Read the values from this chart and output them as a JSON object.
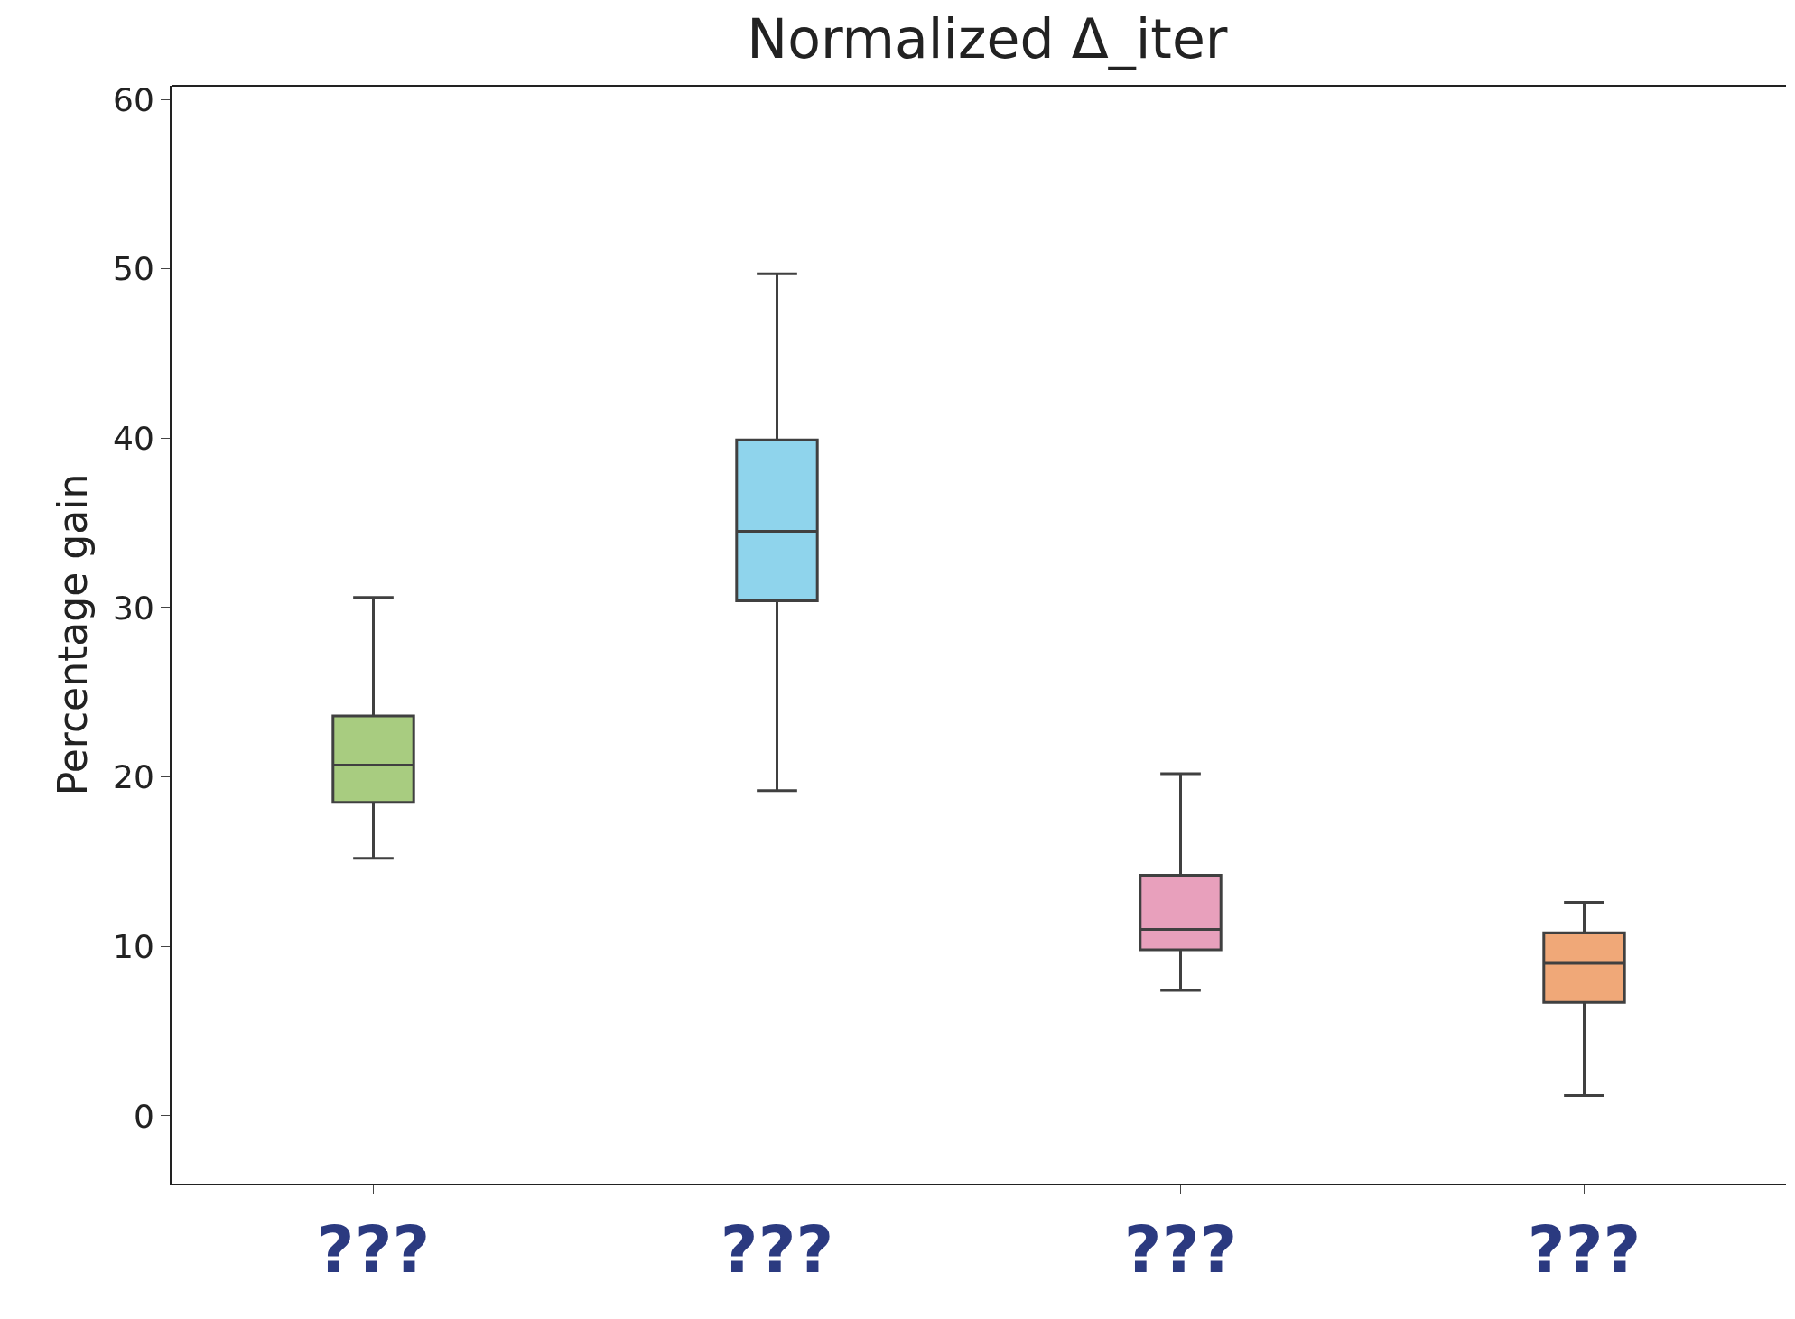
{
  "chart_data": {
    "type": "box",
    "title": "Normalized Δ_iter",
    "ylabel": "Percentage gain",
    "categories": [
      "???",
      "???",
      "???",
      "???"
    ],
    "colors": [
      "#a8cc80",
      "#8fd4ec",
      "#e8a0bc",
      "#f0a878"
    ],
    "boxes": [
      {
        "low": 15.2,
        "q1": 18.5,
        "median": 20.7,
        "q3": 23.6,
        "high": 30.6
      },
      {
        "low": 19.2,
        "q1": 30.4,
        "median": 34.5,
        "q3": 39.9,
        "high": 49.7
      },
      {
        "low": 7.4,
        "q1": 9.8,
        "median": 11.0,
        "q3": 14.2,
        "high": 20.2
      },
      {
        "low": 1.2,
        "q1": 6.7,
        "median": 9.0,
        "q3": 10.8,
        "high": 12.6
      }
    ],
    "ylim": [
      -4,
      60.8
    ],
    "yticks": [
      0,
      10,
      20,
      30,
      40,
      50,
      60
    ],
    "legend": false
  }
}
